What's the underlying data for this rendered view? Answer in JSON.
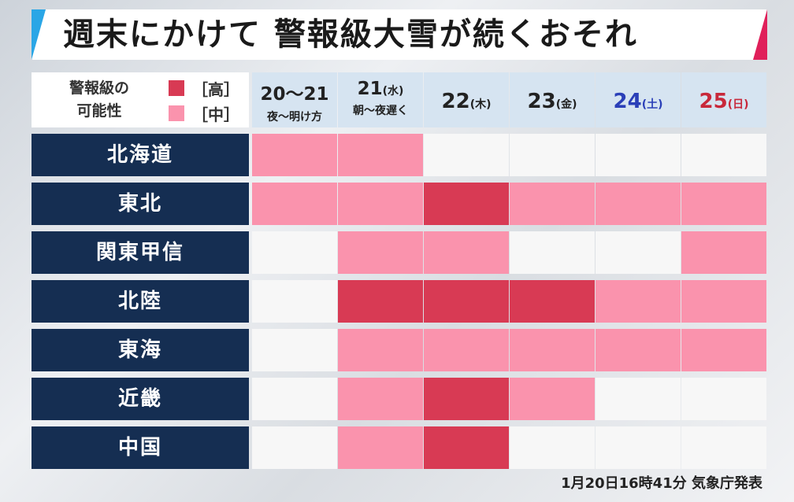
{
  "title": "週末にかけて 警報級大雪が続くおそれ",
  "legend": {
    "label_line1": "警報級の",
    "label_line2": "可能性",
    "high": "［高］",
    "medium": "［中］"
  },
  "colors": {
    "high": "#d83a54",
    "medium": "#fa93ad",
    "none": "#f7f7f7",
    "saturday": "#2a3fb8",
    "sunday": "#c8283a",
    "title_left_accent": "#2aa6e6",
    "title_right_accent": "#e0205a",
    "row_label_bg": "#152e52",
    "header_bg": "#d6e4f1"
  },
  "days": [
    {
      "main": "20～21",
      "weekday": "",
      "sub": "夜～明け方",
      "color": "default"
    },
    {
      "main": "21",
      "weekday": "(水)",
      "sub": "朝～夜遅く",
      "color": "default"
    },
    {
      "main": "22",
      "weekday": "(木)",
      "sub": "",
      "color": "default"
    },
    {
      "main": "23",
      "weekday": "(金)",
      "sub": "",
      "color": "default"
    },
    {
      "main": "24",
      "weekday": "(土)",
      "sub": "",
      "color": "saturday"
    },
    {
      "main": "25",
      "weekday": "(日)",
      "sub": "",
      "color": "sunday"
    }
  ],
  "regions": [
    {
      "name": "北海道",
      "levels": [
        "medium",
        "medium",
        "none",
        "none",
        "none",
        "none"
      ]
    },
    {
      "name": "東北",
      "levels": [
        "medium",
        "medium",
        "high",
        "medium",
        "medium",
        "medium"
      ]
    },
    {
      "name": "関東甲信",
      "levels": [
        "none",
        "medium",
        "medium",
        "none",
        "none",
        "medium"
      ]
    },
    {
      "name": "北陸",
      "levels": [
        "none",
        "high",
        "high",
        "high",
        "medium",
        "medium"
      ]
    },
    {
      "name": "東海",
      "levels": [
        "none",
        "medium",
        "medium",
        "medium",
        "medium",
        "medium"
      ]
    },
    {
      "name": "近畿",
      "levels": [
        "none",
        "medium",
        "high",
        "medium",
        "none",
        "none"
      ]
    },
    {
      "name": "中国",
      "levels": [
        "none",
        "medium",
        "high",
        "none",
        "none",
        "none"
      ]
    }
  ],
  "credit": "1月20日16時41分 気象庁発表"
}
